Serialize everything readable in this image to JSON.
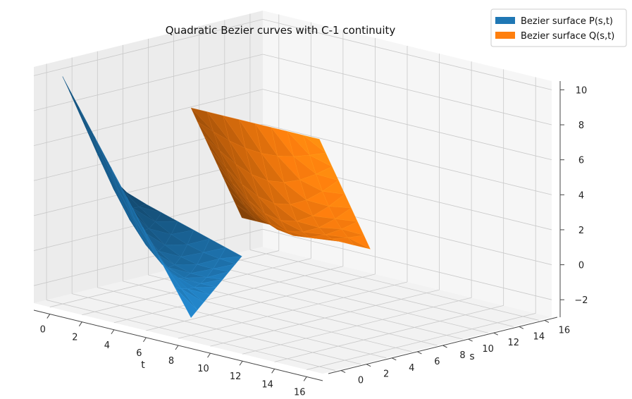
{
  "chart_data": {
    "type": "surface3d",
    "title": "Quadratic Bezier curves with C-1 continuity",
    "xlabel": "t",
    "ylabel": "s",
    "zlabel": "",
    "x_ticks": [
      "0",
      "2",
      "4",
      "6",
      "8",
      "10",
      "12",
      "14",
      "16"
    ],
    "y_ticks": [
      "0",
      "2",
      "4",
      "6",
      "8",
      "10",
      "12",
      "14",
      "16"
    ],
    "z_ticks": [
      "−2",
      "0",
      "2",
      "4",
      "6",
      "8",
      "10"
    ],
    "xlim": [
      -1,
      17
    ],
    "ylim": [
      -1,
      17
    ],
    "zlim": [
      -3,
      10.5
    ],
    "grid": true,
    "legend_position": "top-right",
    "series": [
      {
        "name": "Bezier surface P(s,t)",
        "color": "#1f77b4",
        "t_range": [
          0,
          8
        ],
        "s_range": [
          0,
          4
        ],
        "z_corners": {
          "t0_s0": 10,
          "t0_s4": 3,
          "t8_s0": -2,
          "t8_s4": 0.8
        }
      },
      {
        "name": "Bezier surface Q(s,t)",
        "color": "#ff7f0e",
        "t_range": [
          8,
          16
        ],
        "s_range": [
          0,
          4
        ],
        "z_corners": {
          "t8_s0": 10,
          "t8_s4": 3,
          "t16_s0": -2,
          "t16_s4": 0.8
        }
      }
    ]
  }
}
